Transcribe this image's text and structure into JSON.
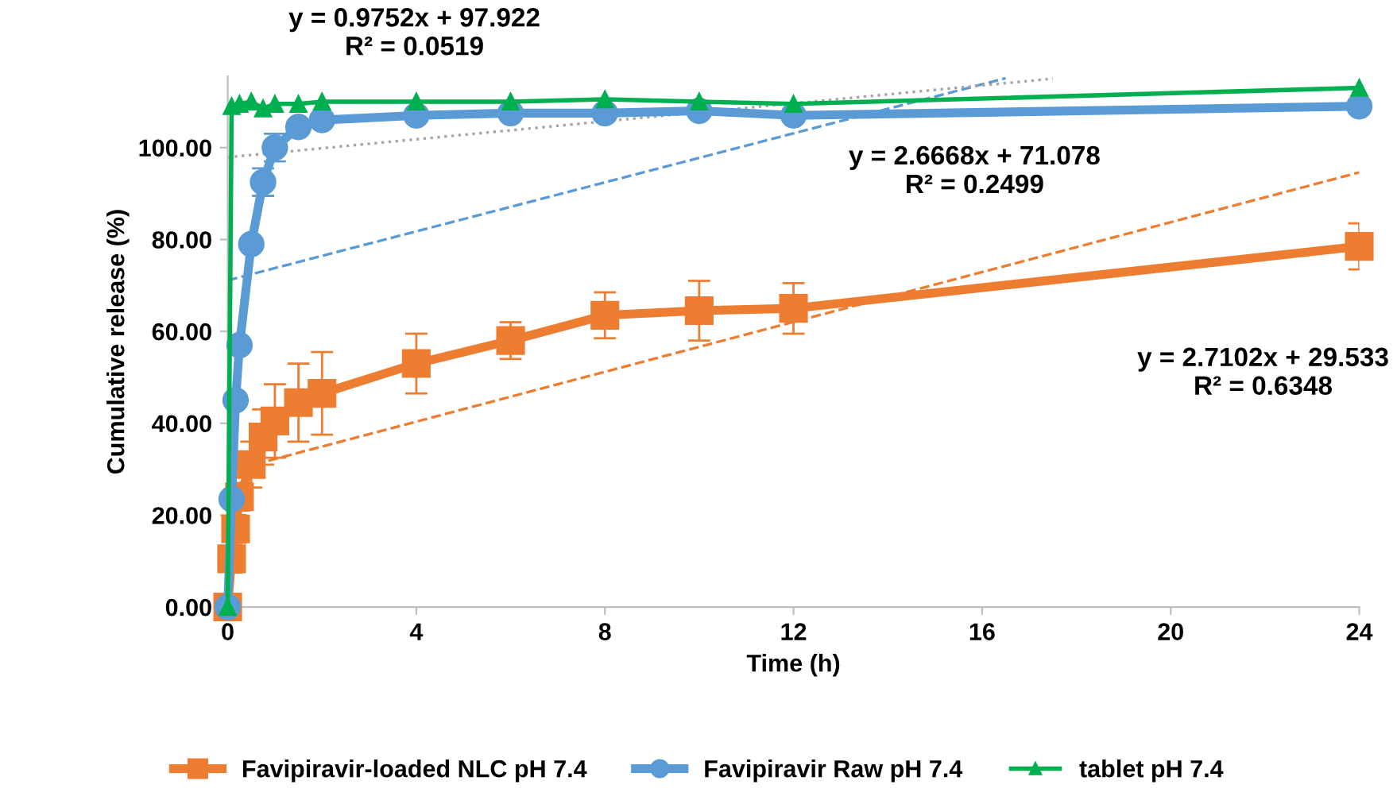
{
  "chart_data": {
    "type": "line",
    "xlabel": "Time (h)",
    "ylabel": "Cumulative release (%)",
    "xlim": [
      0,
      24
    ],
    "xticks": [
      0,
      4,
      8,
      12,
      16,
      20,
      24
    ],
    "ylim": [
      0,
      115.5
    ],
    "yticks": [
      {
        "value": 0,
        "label": "0.00"
      },
      {
        "value": 20,
        "label": "20.00"
      },
      {
        "value": 40,
        "label": "40.00"
      },
      {
        "value": 60,
        "label": "60.00"
      },
      {
        "value": 80,
        "label": "80.00"
      },
      {
        "value": 100,
        "label": "100.00"
      }
    ],
    "grid": false,
    "legend": "bottom",
    "series": [
      {
        "name": "Favipiravir-loaded NLC pH 7.4",
        "color": "#ed7d31",
        "marker": "square",
        "x": [
          0,
          0.083,
          0.167,
          0.25,
          0.5,
          0.75,
          1,
          1.5,
          2,
          4,
          6,
          8,
          10,
          12,
          24
        ],
        "values": [
          0,
          10.5,
          17,
          24,
          31,
          37,
          40.5,
          44.5,
          46.5,
          53,
          58,
          63.5,
          64.5,
          65,
          78.5
        ],
        "errors": [
          null,
          3,
          3,
          3,
          5,
          6,
          8,
          8.5,
          9,
          6.5,
          4,
          5,
          6.5,
          5.5,
          5
        ]
      },
      {
        "name": "Favipiravir Raw pH 7.4",
        "color": "#5b9bd5",
        "marker": "circle",
        "x": [
          0,
          0.083,
          0.167,
          0.25,
          0.5,
          0.75,
          1,
          1.5,
          2,
          4,
          6,
          8,
          10,
          12,
          24
        ],
        "values": [
          0,
          23.5,
          45,
          57,
          79,
          92.5,
          100,
          104.5,
          106,
          107,
          107.5,
          107.5,
          108,
          107,
          109
        ],
        "errors": [
          null,
          null,
          null,
          null,
          null,
          3,
          3,
          null,
          null,
          null,
          null,
          null,
          null,
          null,
          null
        ]
      },
      {
        "name": "tablet pH 7.4",
        "color": "#00b050",
        "marker": "triangle",
        "x": [
          0,
          0.083,
          0.25,
          0.5,
          0.75,
          1,
          1.5,
          2,
          4,
          6,
          8,
          10,
          12,
          24
        ],
        "values": [
          0,
          109,
          109.5,
          110,
          108.5,
          109.5,
          109.5,
          110,
          110,
          110,
          110.5,
          110,
          109.5,
          113
        ]
      },
      {
        "type": "line",
        "color": "#ed7d31",
        "line_style": "dashed",
        "marker": "none",
        "x": [
          0,
          24
        ],
        "values": [
          29.5,
          94.6
        ]
      },
      {
        "type": "line",
        "color": "#5b9bd5",
        "line_style": "dashed",
        "marker": "none",
        "x": [
          0,
          16.5
        ],
        "values": [
          71.1,
          115.1
        ]
      },
      {
        "type": "line",
        "color": "#a6a6a6",
        "line_style": "dotted",
        "marker": "none",
        "x": [
          0,
          17.5
        ],
        "values": [
          97.9,
          115.0
        ]
      }
    ],
    "annotations": [
      "y = 0.9752x + 97.922\nR² = 0.0519",
      "y = 2.6668x + 71.078\nR² = 0.2499",
      "y = 2.7102x + 29.533\nR² = 0.6348"
    ]
  }
}
